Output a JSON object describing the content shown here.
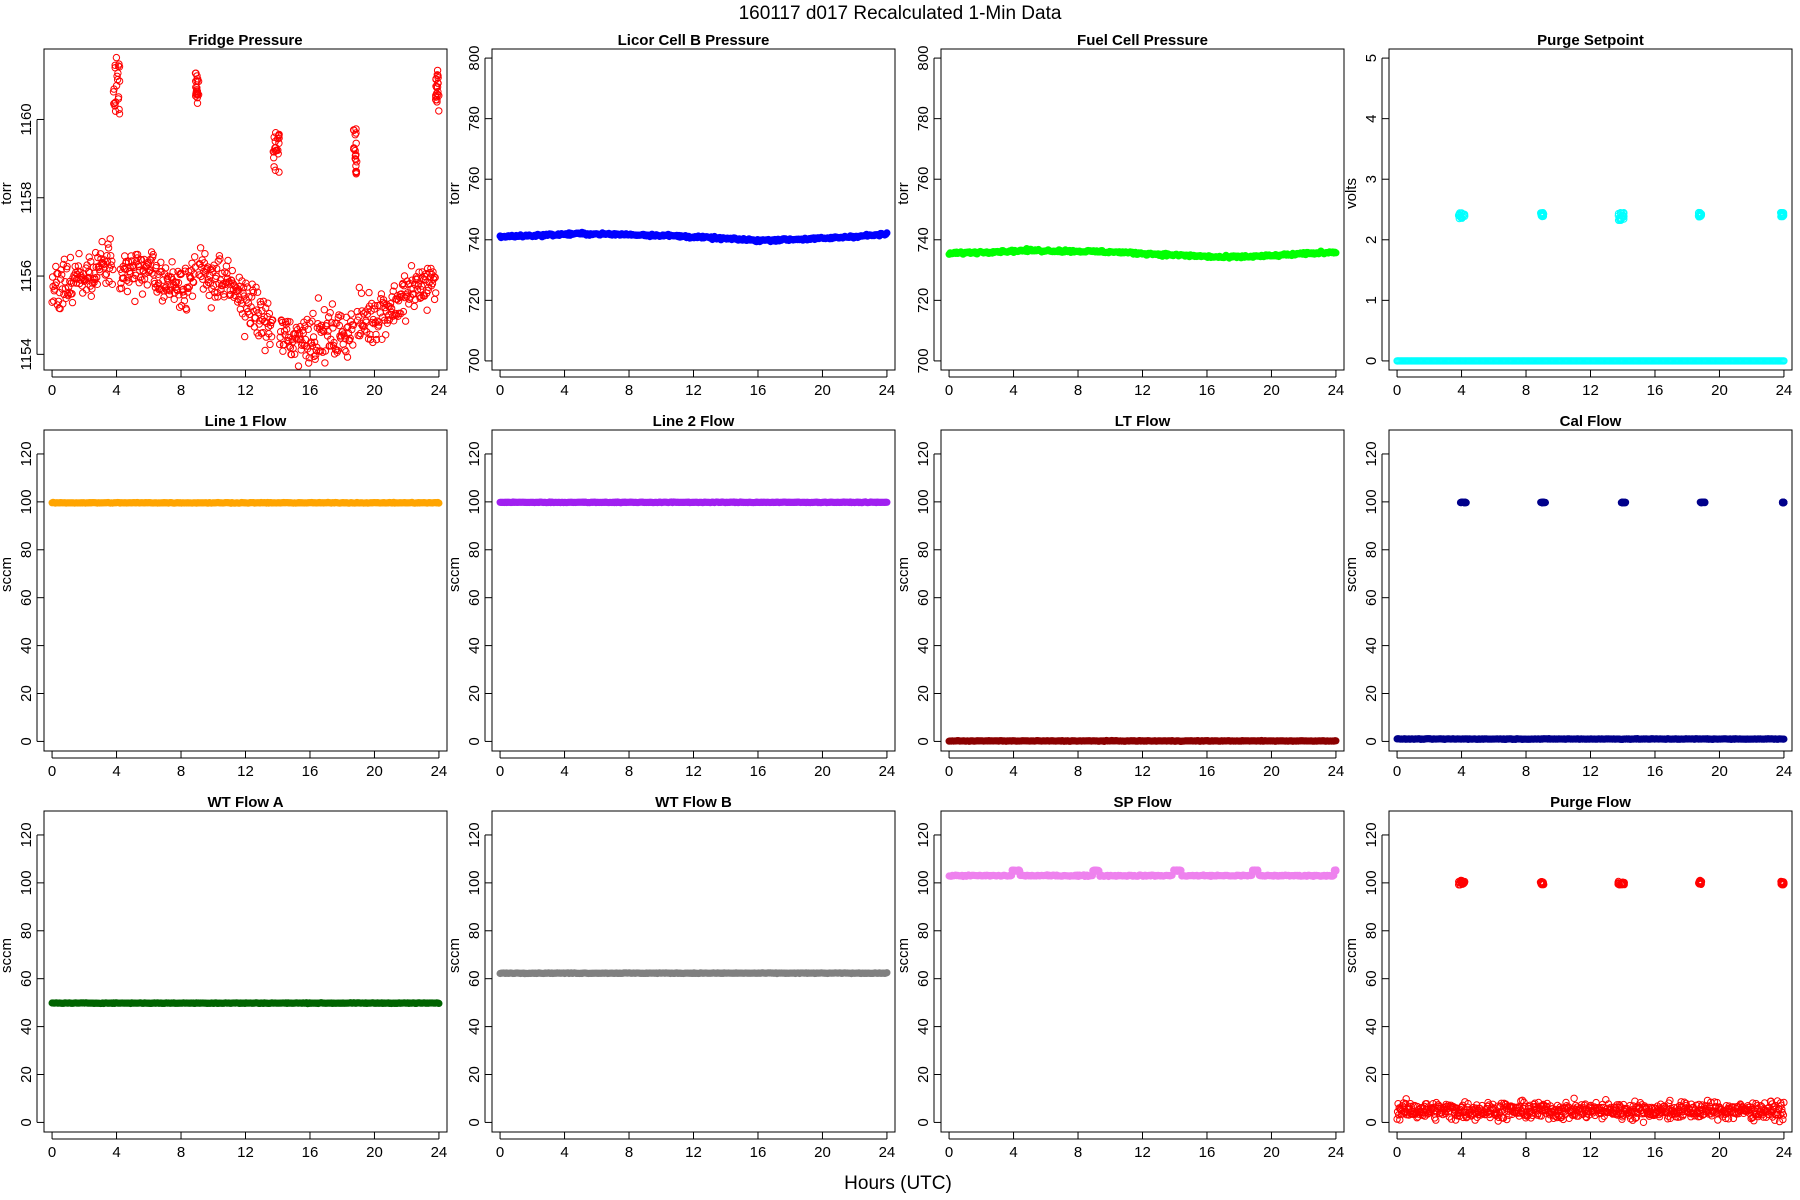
{
  "figure": {
    "title": "160117   d017   Recalculated 1-Min Data",
    "xlabel": "Hours (UTC)"
  },
  "chart_data": [
    {
      "id": "fridge",
      "type": "scatter",
      "title": "Fridge Pressure",
      "ylabel": "torr",
      "xlim": [
        0,
        24
      ],
      "ylim": [
        1153.6,
        1161.8
      ],
      "yticks": [
        1154,
        1156,
        1158,
        1160
      ],
      "xticks": [
        0,
        4,
        8,
        12,
        16,
        20,
        24
      ],
      "color": "#ff0000",
      "marker": "open",
      "grid": false,
      "baseline": [
        [
          0,
          1155.6
        ],
        [
          1,
          1155.8
        ],
        [
          2,
          1156.0
        ],
        [
          3,
          1156.2
        ],
        [
          3.9,
          1156.4
        ],
        [
          4.4,
          1156.2
        ],
        [
          5,
          1156.1
        ],
        [
          6,
          1156.1
        ],
        [
          7,
          1155.9
        ],
        [
          8,
          1155.8
        ],
        [
          9,
          1156.0
        ],
        [
          10,
          1156.0
        ],
        [
          11,
          1155.7
        ],
        [
          12,
          1155.4
        ],
        [
          13,
          1154.9
        ],
        [
          14,
          1154.5
        ],
        [
          15,
          1154.4
        ],
        [
          16,
          1154.5
        ],
        [
          17,
          1154.5
        ],
        [
          18,
          1154.5
        ],
        [
          19,
          1154.8
        ],
        [
          20,
          1155.0
        ],
        [
          21,
          1155.2
        ],
        [
          22,
          1155.5
        ],
        [
          23,
          1155.8
        ],
        [
          24,
          1155.9
        ]
      ],
      "spread": 0.45,
      "clusters": [
        {
          "x": [
            3.8,
            4.2
          ],
          "y": [
            1160.1,
            1161.6
          ]
        },
        {
          "x": [
            8.9,
            9.1
          ],
          "y": [
            1160.4,
            1161.2
          ]
        },
        {
          "x": [
            13.7,
            14.1
          ],
          "y": [
            1158.6,
            1159.7
          ]
        },
        {
          "x": [
            18.7,
            18.9
          ],
          "y": [
            1158.6,
            1159.8
          ]
        },
        {
          "x": [
            23.8,
            24.0
          ],
          "y": [
            1160.2,
            1161.3
          ]
        }
      ]
    },
    {
      "id": "licor",
      "type": "scatter",
      "title": "Licor Cell B Pressure",
      "ylabel": "torr",
      "xlim": [
        0,
        24
      ],
      "ylim": [
        697,
        803
      ],
      "yticks": [
        700,
        720,
        740,
        760,
        780,
        800
      ],
      "xticks": [
        0,
        4,
        8,
        12,
        16,
        20,
        24
      ],
      "color": "#0000ff",
      "marker": "filled",
      "grid": false,
      "baseline": [
        [
          0,
          741.0
        ],
        [
          5,
          742.0
        ],
        [
          10,
          741.5
        ],
        [
          16,
          739.8
        ],
        [
          20,
          740.4
        ],
        [
          24,
          741.8
        ]
      ],
      "spread": 0.3,
      "clusters": []
    },
    {
      "id": "fuelcell",
      "type": "scatter",
      "title": "Fuel Cell Pressure",
      "ylabel": "torr",
      "xlim": [
        0,
        24
      ],
      "ylim": [
        697,
        803
      ],
      "yticks": [
        700,
        720,
        740,
        760,
        780,
        800
      ],
      "xticks": [
        0,
        4,
        8,
        12,
        16,
        20,
        24
      ],
      "color": "#00ff00",
      "marker": "filled",
      "grid": false,
      "baseline": [
        [
          0,
          735.5
        ],
        [
          5,
          736.5
        ],
        [
          10,
          736.0
        ],
        [
          17,
          734.2
        ],
        [
          20,
          734.7
        ],
        [
          24,
          736.0
        ]
      ],
      "spread": 0.3,
      "clusters": []
    },
    {
      "id": "purgeset",
      "type": "scatter",
      "title": "Purge Setpoint",
      "ylabel": "volts",
      "xlim": [
        0,
        24
      ],
      "ylim": [
        -0.15,
        5.15
      ],
      "yticks": [
        0,
        1,
        2,
        3,
        4,
        5
      ],
      "xticks": [
        0,
        4,
        8,
        12,
        16,
        20,
        24
      ],
      "color": "#00ffff",
      "marker": "open",
      "grid": false,
      "baseline": [
        [
          0,
          0
        ],
        [
          24,
          0
        ]
      ],
      "spread": 0.0,
      "clusters": [
        {
          "x": [
            3.8,
            4.2
          ],
          "y": [
            2.35,
            2.45
          ]
        },
        {
          "x": [
            8.9,
            9.1
          ],
          "y": [
            2.38,
            2.45
          ]
        },
        {
          "x": [
            13.7,
            14.1
          ],
          "y": [
            2.32,
            2.45
          ]
        },
        {
          "x": [
            18.7,
            18.9
          ],
          "y": [
            2.38,
            2.45
          ]
        },
        {
          "x": [
            23.8,
            24.0
          ],
          "y": [
            2.38,
            2.45
          ]
        }
      ]
    },
    {
      "id": "line1",
      "type": "scatter",
      "title": "Line 1 Flow",
      "ylabel": "sccm",
      "xlim": [
        0,
        24
      ],
      "ylim": [
        -4,
        130
      ],
      "yticks": [
        0,
        20,
        40,
        60,
        80,
        100,
        120
      ],
      "xticks": [
        0,
        4,
        8,
        12,
        16,
        20,
        24
      ],
      "color": "#ffa500",
      "marker": "filled",
      "grid": false,
      "baseline": [
        [
          0,
          99.6
        ],
        [
          24,
          99.6
        ]
      ],
      "spread": 0.1,
      "clusters": []
    },
    {
      "id": "line2",
      "type": "scatter",
      "title": "Line 2 Flow",
      "ylabel": "sccm",
      "xlim": [
        0,
        24
      ],
      "ylim": [
        -4,
        130
      ],
      "yticks": [
        0,
        20,
        40,
        60,
        80,
        100,
        120
      ],
      "xticks": [
        0,
        4,
        8,
        12,
        16,
        20,
        24
      ],
      "color": "#a020f0",
      "marker": "filled",
      "grid": false,
      "baseline": [
        [
          0,
          99.8
        ],
        [
          24,
          99.8
        ]
      ],
      "spread": 0.1,
      "clusters": []
    },
    {
      "id": "ltflow",
      "type": "scatter",
      "title": "LT Flow",
      "ylabel": "sccm",
      "xlim": [
        0,
        24
      ],
      "ylim": [
        -4,
        130
      ],
      "yticks": [
        0,
        20,
        40,
        60,
        80,
        100,
        120
      ],
      "xticks": [
        0,
        4,
        8,
        12,
        16,
        20,
        24
      ],
      "color": "#8b0000",
      "marker": "filled",
      "grid": false,
      "baseline": [
        [
          0,
          0.2
        ],
        [
          24,
          0.2
        ]
      ],
      "spread": 0.1,
      "clusters": []
    },
    {
      "id": "calflow",
      "type": "scatter",
      "title": "Cal Flow",
      "ylabel": "sccm",
      "xlim": [
        0,
        24
      ],
      "ylim": [
        -4,
        130
      ],
      "yticks": [
        0,
        20,
        40,
        60,
        80,
        100,
        120
      ],
      "xticks": [
        0,
        4,
        8,
        12,
        16,
        20,
        24
      ],
      "color": "#00008b",
      "marker": "filled",
      "grid": false,
      "baseline": [
        [
          0,
          1.0
        ],
        [
          24,
          1.0
        ]
      ],
      "spread": 0.1,
      "clusters": [
        {
          "x": [
            3.9,
            4.3
          ],
          "y": [
            99.6,
            99.9
          ]
        },
        {
          "x": [
            8.9,
            9.2
          ],
          "y": [
            99.6,
            99.9
          ]
        },
        {
          "x": [
            13.9,
            14.2
          ],
          "y": [
            99.6,
            99.9
          ]
        },
        {
          "x": [
            18.8,
            19.1
          ],
          "y": [
            99.6,
            99.9
          ]
        },
        {
          "x": [
            23.9,
            24.0
          ],
          "y": [
            99.6,
            99.9
          ]
        }
      ]
    },
    {
      "id": "wta",
      "type": "scatter",
      "title": "WT Flow A",
      "ylabel": "sccm",
      "xlim": [
        0,
        24
      ],
      "ylim": [
        -4,
        130
      ],
      "yticks": [
        0,
        20,
        40,
        60,
        80,
        100,
        120
      ],
      "xticks": [
        0,
        4,
        8,
        12,
        16,
        20,
        24
      ],
      "color": "#006400",
      "marker": "filled",
      "grid": false,
      "baseline": [
        [
          0,
          49.8
        ],
        [
          24,
          49.8
        ]
      ],
      "spread": 0.1,
      "clusters": []
    },
    {
      "id": "wtb",
      "type": "scatter",
      "title": "WT Flow B",
      "ylabel": "sccm",
      "xlim": [
        0,
        24
      ],
      "ylim": [
        -4,
        130
      ],
      "yticks": [
        0,
        20,
        40,
        60,
        80,
        100,
        120
      ],
      "xticks": [
        0,
        4,
        8,
        12,
        16,
        20,
        24
      ],
      "color": "#808080",
      "marker": "filled",
      "grid": false,
      "baseline": [
        [
          0,
          62.3
        ],
        [
          24,
          62.3
        ]
      ],
      "spread": 0.1,
      "clusters": []
    },
    {
      "id": "spflow",
      "type": "scatter",
      "title": "SP Flow",
      "ylabel": "sccm",
      "xlim": [
        0,
        24
      ],
      "ylim": [
        -4,
        130
      ],
      "yticks": [
        0,
        20,
        40,
        60,
        80,
        100,
        120
      ],
      "xticks": [
        0,
        4,
        8,
        12,
        16,
        20,
        24
      ],
      "color": "#ee82ee",
      "marker": "filled",
      "grid": false,
      "baseline": [
        [
          0,
          103.0
        ],
        [
          24,
          103.0
        ]
      ],
      "spread": 0.2,
      "clusters": [
        {
          "x": [
            3.9,
            4.4
          ],
          "y": [
            104.8,
            105.4
          ]
        },
        {
          "x": [
            8.9,
            9.3
          ],
          "y": [
            104.8,
            105.4
          ]
        },
        {
          "x": [
            13.9,
            14.4
          ],
          "y": [
            104.8,
            105.4
          ]
        },
        {
          "x": [
            18.8,
            19.2
          ],
          "y": [
            104.8,
            105.4
          ]
        },
        {
          "x": [
            23.9,
            24.0
          ],
          "y": [
            104.8,
            105.4
          ]
        }
      ]
    },
    {
      "id": "purgeflow",
      "type": "scatter",
      "title": "Purge Flow",
      "ylabel": "sccm",
      "xlim": [
        0,
        24
      ],
      "ylim": [
        -4,
        130
      ],
      "yticks": [
        0,
        20,
        40,
        60,
        80,
        100,
        120
      ],
      "xticks": [
        0,
        4,
        8,
        12,
        16,
        20,
        24
      ],
      "color": "#ff0000",
      "marker": "open",
      "grid": false,
      "baseline": [
        [
          0,
          5.0
        ],
        [
          24,
          5.0
        ]
      ],
      "spread": 2.5,
      "clusters": [
        {
          "x": [
            3.8,
            4.2
          ],
          "y": [
            99.0,
            101.0
          ]
        },
        {
          "x": [
            8.9,
            9.1
          ],
          "y": [
            99.2,
            100.6
          ]
        },
        {
          "x": [
            13.7,
            14.1
          ],
          "y": [
            99.0,
            100.6
          ]
        },
        {
          "x": [
            18.7,
            18.9
          ],
          "y": [
            99.3,
            101.0
          ]
        },
        {
          "x": [
            23.8,
            24.0
          ],
          "y": [
            99.2,
            100.6
          ]
        }
      ]
    }
  ]
}
